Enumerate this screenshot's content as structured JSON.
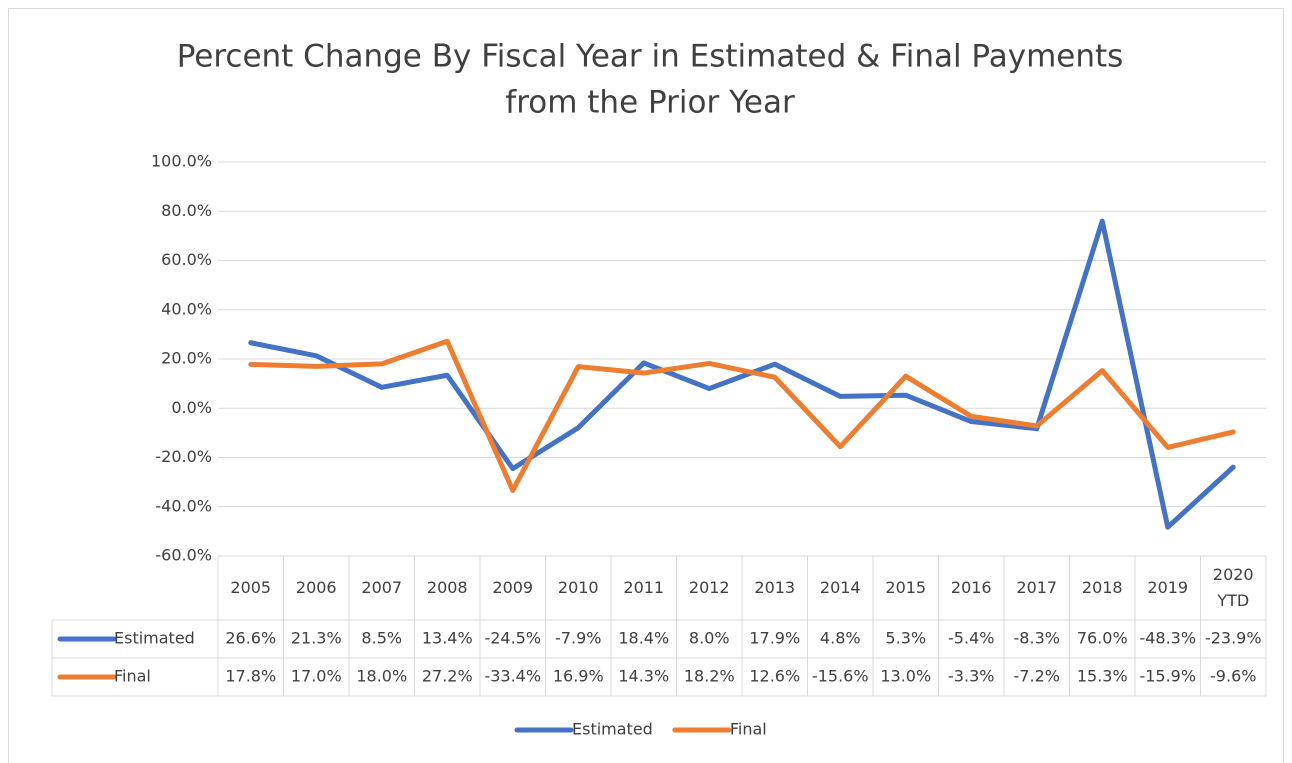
{
  "chart_data": {
    "type": "line",
    "title": [
      "Percent Change By Fiscal Year in Estimated & Final Payments",
      "from the Prior Year"
    ],
    "categories": [
      "2005",
      "2006",
      "2007",
      "2008",
      "2009",
      "2010",
      "2011",
      "2012",
      "2013",
      "2014",
      "2015",
      "2016",
      "2017",
      "2018",
      "2019",
      "2020 YTD"
    ],
    "series": [
      {
        "name": "Estimated",
        "color": "#4472c4",
        "values": [
          26.6,
          21.3,
          8.5,
          13.4,
          -24.5,
          -7.9,
          18.4,
          8.0,
          17.9,
          4.8,
          5.3,
          -5.4,
          -8.3,
          76.0,
          -48.3,
          -23.9
        ],
        "value_labels": [
          "26.6%",
          "21.3%",
          "8.5%",
          "13.4%",
          "-24.5%",
          "-7.9%",
          "18.4%",
          "8.0%",
          "17.9%",
          "4.8%",
          "5.3%",
          "-5.4%",
          "-8.3%",
          "76.0%",
          "-48.3%",
          "-23.9%"
        ]
      },
      {
        "name": "Final",
        "color": "#ed7d31",
        "values": [
          17.8,
          17.0,
          18.0,
          27.2,
          -33.4,
          16.9,
          14.3,
          18.2,
          12.6,
          -15.6,
          13.0,
          -3.3,
          -7.2,
          15.3,
          -15.9,
          -9.6
        ],
        "value_labels": [
          "17.8%",
          "17.0%",
          "18.0%",
          "27.2%",
          "-33.4%",
          "16.9%",
          "14.3%",
          "18.2%",
          "12.6%",
          "-15.6%",
          "13.0%",
          "-3.3%",
          "-7.2%",
          "15.3%",
          "-15.9%",
          "-9.6%"
        ]
      }
    ],
    "ylim": [
      -60,
      100
    ],
    "yticks": [
      {
        "value": -60,
        "label": "-60.0%"
      },
      {
        "value": -40,
        "label": "-40.0%"
      },
      {
        "value": -20,
        "label": "-20.0%"
      },
      {
        "value": 0,
        "label": "0.0%"
      },
      {
        "value": 20,
        "label": "20.0%"
      },
      {
        "value": 40,
        "label": "40.0%"
      },
      {
        "value": 60,
        "label": "60.0%"
      },
      {
        "value": 80,
        "label": "80.0%"
      },
      {
        "value": 100,
        "label": "100.0%"
      }
    ],
    "grid": true,
    "legend": "bottom"
  }
}
